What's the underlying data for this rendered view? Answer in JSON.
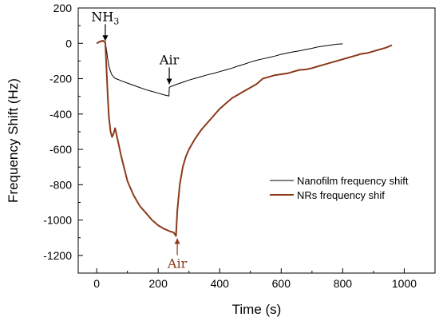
{
  "chart_data": {
    "type": "line",
    "xlabel": "Time (s)",
    "ylabel": "Frequency Shift (Hz)",
    "xlim": [
      -60,
      1100
    ],
    "ylim": [
      -1300,
      200
    ],
    "xticks": [
      0,
      200,
      400,
      600,
      800,
      1000
    ],
    "yticks": [
      200,
      0,
      -200,
      -400,
      -600,
      -800,
      -1000,
      -1200
    ],
    "grid": false,
    "legend_position": "center-right",
    "series": [
      {
        "name": "Nanofilm frequency shift",
        "color": "#000000",
        "x": [
          0,
          10,
          20,
          28,
          32,
          36,
          40,
          45,
          50,
          55,
          60,
          70,
          80,
          100,
          120,
          140,
          160,
          180,
          200,
          220,
          235,
          236,
          240,
          260,
          280,
          300,
          320,
          340,
          360,
          380,
          400,
          420,
          440,
          460,
          480,
          500,
          520,
          540,
          560,
          580,
          600,
          620,
          640,
          660,
          680,
          700,
          720,
          740,
          760,
          780,
          800
        ],
        "y": [
          0,
          8,
          12,
          5,
          -40,
          -90,
          -130,
          -160,
          -180,
          -190,
          -198,
          -205,
          -212,
          -225,
          -238,
          -250,
          -262,
          -272,
          -282,
          -292,
          -298,
          -250,
          -245,
          -232,
          -220,
          -208,
          -198,
          -188,
          -178,
          -170,
          -160,
          -150,
          -140,
          -128,
          -118,
          -106,
          -96,
          -88,
          -80,
          -72,
          -62,
          -55,
          -48,
          -42,
          -35,
          -28,
          -20,
          -15,
          -10,
          -5,
          -3
        ]
      },
      {
        "name": "NRs frequency shif",
        "color": "#8B3A1A",
        "x": [
          0,
          10,
          20,
          28,
          32,
          36,
          40,
          45,
          50,
          55,
          60,
          70,
          80,
          90,
          100,
          120,
          140,
          160,
          180,
          200,
          220,
          240,
          250,
          258,
          262,
          270,
          280,
          290,
          300,
          320,
          340,
          360,
          380,
          400,
          420,
          440,
          460,
          480,
          500,
          520,
          540,
          560,
          580,
          600,
          620,
          640,
          660,
          680,
          700,
          720,
          740,
          760,
          780,
          800,
          820,
          840,
          860,
          880,
          900,
          920,
          940,
          960
        ],
        "y": [
          0,
          10,
          15,
          5,
          -150,
          -300,
          -420,
          -500,
          -530,
          -510,
          -480,
          -560,
          -640,
          -710,
          -780,
          -860,
          -920,
          -960,
          -1000,
          -1030,
          -1050,
          -1065,
          -1070,
          -1090,
          -950,
          -800,
          -700,
          -640,
          -600,
          -540,
          -490,
          -450,
          -410,
          -370,
          -340,
          -310,
          -290,
          -270,
          -250,
          -230,
          -200,
          -190,
          -180,
          -175,
          -170,
          -160,
          -150,
          -148,
          -140,
          -130,
          -120,
          -110,
          -100,
          -90,
          -80,
          -70,
          -60,
          -55,
          -45,
          -35,
          -25,
          -10
        ]
      }
    ],
    "annotations": [
      {
        "text": "NH",
        "sub": "3",
        "x": 28,
        "y": 0,
        "position": "above",
        "color": "#000000"
      },
      {
        "text": "Air",
        "x": 236,
        "y": -245,
        "position": "above",
        "color": "#000000"
      },
      {
        "text": "Air",
        "x": 262,
        "y": -1090,
        "position": "below",
        "color": "#8B3A1A"
      }
    ]
  }
}
